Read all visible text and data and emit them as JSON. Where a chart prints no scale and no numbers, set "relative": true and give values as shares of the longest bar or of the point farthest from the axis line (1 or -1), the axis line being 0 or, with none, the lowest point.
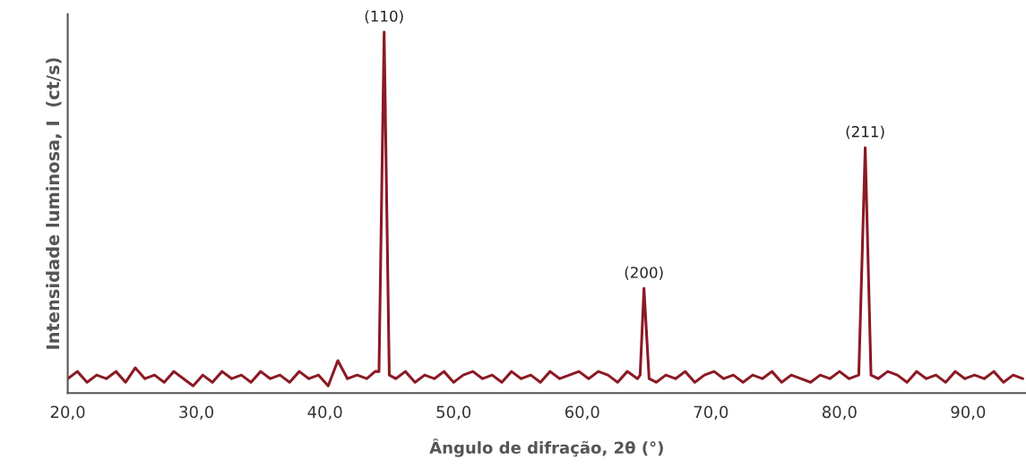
{
  "chart_data": {
    "type": "line",
    "relative": true,
    "xlabel": "Ângulo de difração, 2θ (°)",
    "ylabel": "Intensidade luminosa, I  (ct/s)",
    "xlim": [
      20,
      94.5
    ],
    "xticks": [
      {
        "value": 20,
        "label": "20,0"
      },
      {
        "value": 30,
        "label": "30,0"
      },
      {
        "value": 40,
        "label": "40,0"
      },
      {
        "value": 50,
        "label": "50,0"
      },
      {
        "value": 60,
        "label": "60,0"
      },
      {
        "value": 70,
        "label": "70,0"
      },
      {
        "value": 80,
        "label": "80,0"
      },
      {
        "value": 90,
        "label": "90,0"
      }
    ],
    "grid": false,
    "legend": false,
    "series": [
      {
        "color": "#8b1a24",
        "x": [
          20.0,
          20.75,
          21.5,
          22.25,
          23.0,
          23.75,
          24.5,
          25.25,
          26.0,
          26.75,
          27.5,
          28.25,
          29.0,
          29.75,
          30.5,
          31.25,
          32.0,
          32.75,
          33.5,
          34.25,
          35.0,
          35.75,
          36.5,
          37.25,
          38.0,
          38.75,
          39.5,
          40.25,
          41.0,
          41.75,
          42.5,
          43.25,
          43.9,
          44.2,
          44.6,
          45.0,
          45.5,
          46.25,
          47.0,
          47.75,
          48.5,
          49.25,
          50.0,
          50.75,
          51.5,
          52.25,
          53.0,
          53.75,
          54.5,
          55.25,
          56.0,
          56.75,
          57.5,
          58.25,
          59.0,
          59.75,
          60.5,
          61.25,
          62.0,
          62.75,
          63.5,
          64.3,
          64.5,
          64.8,
          65.2,
          65.75,
          66.5,
          67.25,
          68.0,
          68.75,
          69.5,
          70.25,
          71.0,
          71.75,
          72.5,
          73.25,
          74.0,
          74.75,
          75.5,
          76.25,
          77.0,
          77.75,
          78.5,
          79.25,
          80.0,
          80.75,
          81.5,
          82.0,
          82.45,
          83.0,
          83.75,
          84.5,
          85.25,
          86.0,
          86.75,
          87.5,
          88.25,
          89.0,
          89.75,
          90.5,
          91.25,
          92.0,
          92.75,
          93.5,
          94.25
        ],
        "values": [
          0.04,
          0.06,
          0.03,
          0.05,
          0.04,
          0.06,
          0.03,
          0.07,
          0.04,
          0.05,
          0.03,
          0.06,
          0.04,
          0.02,
          0.05,
          0.03,
          0.06,
          0.04,
          0.05,
          0.03,
          0.06,
          0.04,
          0.05,
          0.03,
          0.06,
          0.04,
          0.05,
          0.02,
          0.09,
          0.04,
          0.05,
          0.04,
          0.06,
          0.06,
          1,
          0.05,
          0.04,
          0.06,
          0.03,
          0.05,
          0.04,
          0.06,
          0.03,
          0.05,
          0.06,
          0.04,
          0.05,
          0.03,
          0.06,
          0.04,
          0.05,
          0.03,
          0.06,
          0.04,
          0.05,
          0.06,
          0.04,
          0.06,
          0.05,
          0.03,
          0.06,
          0.04,
          0.05,
          0.29,
          0.04,
          0.03,
          0.05,
          0.04,
          0.06,
          0.03,
          0.05,
          0.06,
          0.04,
          0.05,
          0.03,
          0.05,
          0.04,
          0.06,
          0.03,
          0.05,
          0.04,
          0.03,
          0.05,
          0.04,
          0.06,
          0.04,
          0.05,
          0.68,
          0.05,
          0.04,
          0.06,
          0.05,
          0.03,
          0.06,
          0.04,
          0.05,
          0.03,
          0.06,
          0.04,
          0.05,
          0.04,
          0.06,
          0.03,
          0.05,
          0.04
        ]
      }
    ],
    "annotations": [
      {
        "text": "(110)",
        "x": 44.6,
        "y": 1
      },
      {
        "text": "(200)",
        "x": 64.8,
        "y": 0.29
      },
      {
        "text": "(211)",
        "x": 82.0,
        "y": 0.68
      }
    ]
  }
}
